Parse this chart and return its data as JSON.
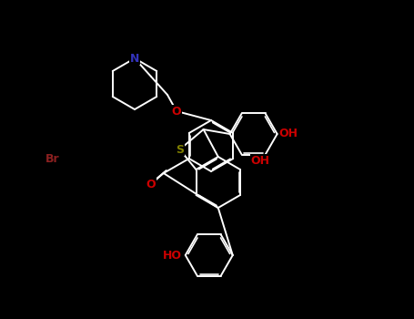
{
  "background": "#000000",
  "bond_color": "#ffffff",
  "lw": 1.4,
  "figsize": [
    4.55,
    3.5
  ],
  "dpi": 100,
  "xlim": [
    0,
    455
  ],
  "ylim": [
    0,
    350
  ]
}
